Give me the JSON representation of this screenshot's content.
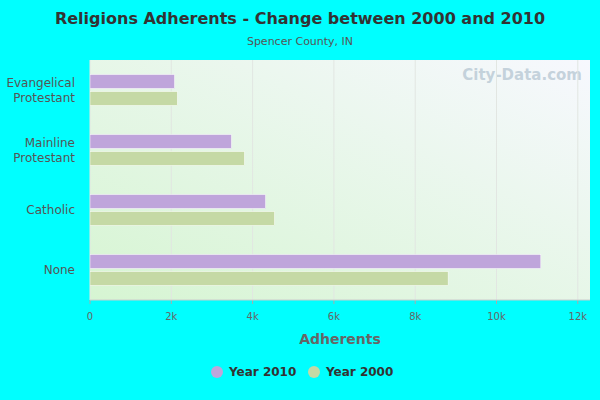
{
  "chart_data": {
    "type": "bar",
    "orientation": "horizontal",
    "title": "Religions Adherents - Change between 2000 and 2010",
    "subtitle": "Spencer County, IN",
    "x_label": "Adherents",
    "annotations": [
      "City-Data.com"
    ],
    "categories": [
      "Evangelical Protestant",
      "Mainline Protestant",
      "Catholic",
      "None"
    ],
    "series": [
      {
        "name": "Year 2010",
        "color": "#bfa5db",
        "values": [
          2080,
          3480,
          4320,
          11090
        ]
      },
      {
        "name": "Year 2000",
        "color": "#c5d9a5",
        "values": [
          2150,
          3800,
          4540,
          8810
        ]
      }
    ],
    "xlim": [
      0,
      12300
    ],
    "xticks": [
      0,
      {
        "value": 2000,
        "label": "2k"
      },
      {
        "value": 4000,
        "label": "4k"
      },
      {
        "value": 6000,
        "label": "6k"
      },
      {
        "value": 8000,
        "label": "8k"
      },
      {
        "value": 10000,
        "label": "10k"
      },
      {
        "value": 12000,
        "label": "12k"
      }
    ],
    "grid": true,
    "legend": "bottom"
  }
}
